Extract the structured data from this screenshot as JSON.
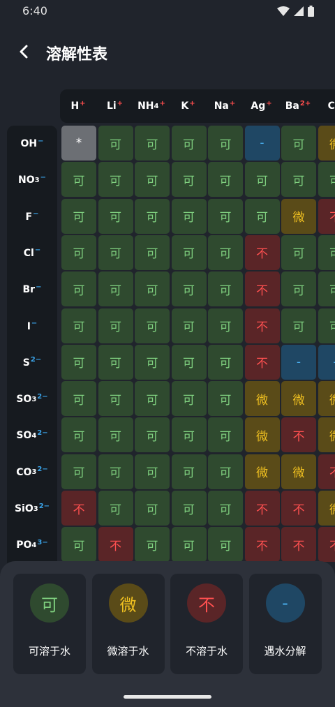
{
  "status": {
    "time": "6:40"
  },
  "header": {
    "title": "溶解性表"
  },
  "columns": [
    {
      "base": "H",
      "sub": "",
      "charge": "+"
    },
    {
      "base": "Li",
      "sub": "",
      "charge": "+"
    },
    {
      "base": "NH",
      "sub": "4",
      "charge": "+"
    },
    {
      "base": "K",
      "sub": "",
      "charge": "+"
    },
    {
      "base": "Na",
      "sub": "",
      "charge": "+"
    },
    {
      "base": "Ag",
      "sub": "",
      "charge": "+"
    },
    {
      "base": "Ba",
      "sub": "",
      "charge": "2+"
    },
    {
      "base": "Ca",
      "sub": "",
      "charge": ""
    }
  ],
  "rows": [
    {
      "base": "OH",
      "sub": "",
      "charge": "−"
    },
    {
      "base": "NO",
      "sub": "3",
      "charge": "−"
    },
    {
      "base": "F",
      "sub": "",
      "charge": "−"
    },
    {
      "base": "Cl",
      "sub": "",
      "charge": "−"
    },
    {
      "base": "Br",
      "sub": "",
      "charge": "−"
    },
    {
      "base": "I",
      "sub": "",
      "charge": "−"
    },
    {
      "base": "S",
      "sub": "",
      "charge": "2−"
    },
    {
      "base": "SO",
      "sub": "3",
      "charge": "2−"
    },
    {
      "base": "SO",
      "sub": "4",
      "charge": "2−"
    },
    {
      "base": "CO",
      "sub": "3",
      "charge": "2−"
    },
    {
      "base": "SiO",
      "sub": "3",
      "charge": "2−"
    },
    {
      "base": "PO",
      "sub": "4",
      "charge": "3−"
    }
  ],
  "symbols": {
    "s": "可",
    "m": "微",
    "i": "不",
    "d": "-",
    "x": "*"
  },
  "grid": [
    [
      "x",
      "s",
      "s",
      "s",
      "s",
      "d",
      "s",
      "m"
    ],
    [
      "s",
      "s",
      "s",
      "s",
      "s",
      "s",
      "s",
      "s"
    ],
    [
      "s",
      "s",
      "s",
      "s",
      "s",
      "s",
      "m",
      "i"
    ],
    [
      "s",
      "s",
      "s",
      "s",
      "s",
      "i",
      "s",
      "s"
    ],
    [
      "s",
      "s",
      "s",
      "s",
      "s",
      "i",
      "s",
      "s"
    ],
    [
      "s",
      "s",
      "s",
      "s",
      "s",
      "i",
      "s",
      "s"
    ],
    [
      "s",
      "s",
      "s",
      "s",
      "s",
      "i",
      "d",
      "d"
    ],
    [
      "s",
      "s",
      "s",
      "s",
      "s",
      "m",
      "m",
      "m"
    ],
    [
      "s",
      "s",
      "s",
      "s",
      "s",
      "m",
      "i",
      "m"
    ],
    [
      "s",
      "s",
      "s",
      "s",
      "s",
      "m",
      "m",
      "i"
    ],
    [
      "i",
      "s",
      "s",
      "s",
      "s",
      "i",
      "i",
      "m"
    ],
    [
      "s",
      "i",
      "s",
      "s",
      "s",
      "i",
      "i",
      "i"
    ]
  ],
  "legend": [
    {
      "symbol": "可",
      "label": "可溶于水",
      "kind": "s"
    },
    {
      "symbol": "微",
      "label": "微溶于水",
      "kind": "m"
    },
    {
      "symbol": "不",
      "label": "不溶于水",
      "kind": "i"
    },
    {
      "symbol": "-",
      "label": "遇水分解",
      "kind": "d"
    }
  ],
  "colors": {
    "soluble_bg": "#2f4a2f",
    "soluble_fg": "#7fd07f",
    "slight_bg": "#5a4b18",
    "slight_fg": "#f0c020",
    "insoluble_bg": "#5a2527",
    "insoluble_fg": "#ff5050",
    "decomposes_bg": "#1f4764",
    "decomposes_fg": "#4ab0f0",
    "cation_charge": "#ff4d4d",
    "anion_charge": "#3aa3e8"
  }
}
